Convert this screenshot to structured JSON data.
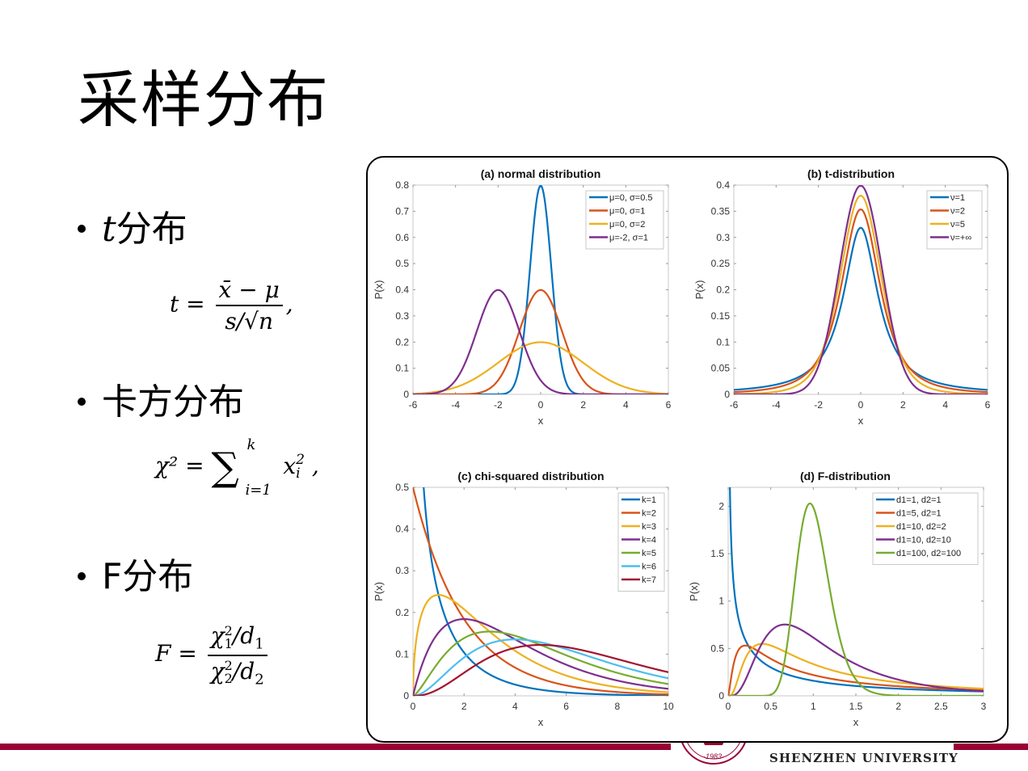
{
  "slide": {
    "title": "采样分布",
    "bullets": [
      {
        "prefix_italic": "t",
        "label": "分布"
      },
      {
        "prefix_italic": "",
        "label": "卡方分布"
      },
      {
        "prefix_italic": "",
        "label": "F分布"
      }
    ],
    "formulas": {
      "t": {
        "lhs": "t =",
        "num": "x̄ − μ",
        "den": "s/√n",
        "tail": ","
      },
      "chi": {
        "lhs": "χ² =",
        "sum": "∑",
        "upper": "k",
        "lower": "i=1",
        "term": "x",
        "term_sub": "i",
        "term_sup": "2",
        "tail": ","
      },
      "f": {
        "lhs": "F =",
        "num_main": "χ",
        "num_sub": "1",
        "num_sup": "2",
        "num_rest": "/d",
        "num_rest_sub": "1",
        "den_main": "χ",
        "den_sub": "2",
        "den_sup": "2",
        "den_rest": "/d",
        "den_rest_sub": "2"
      }
    },
    "footer": {
      "university": "SHENZHEN UNIVERSITY",
      "seal_year": "·1983·",
      "bar_color": "#9b0033"
    }
  },
  "chart_data": [
    {
      "type": "line",
      "title": "(a) normal distribution",
      "xlabel": "x",
      "ylabel": "P(x)",
      "xlim": [
        -6,
        6
      ],
      "ylim": [
        0,
        0.8
      ],
      "xticks": [
        -6,
        -4,
        -2,
        0,
        2,
        4,
        6
      ],
      "yticks": [
        0,
        0.1,
        0.2,
        0.3,
        0.4,
        0.5,
        0.6,
        0.7,
        0.8
      ],
      "legend_position": "upper right",
      "dist": "normal",
      "series": [
        {
          "name": "μ=0, σ=0.5",
          "mu": 0,
          "sigma": 0.5,
          "color": "#0072bd"
        },
        {
          "name": "μ=0, σ=1",
          "mu": 0,
          "sigma": 1,
          "color": "#d95319"
        },
        {
          "name": "μ=0, σ=2",
          "mu": 0,
          "sigma": 2,
          "color": "#edb120"
        },
        {
          "name": "μ=-2, σ=1",
          "mu": -2,
          "sigma": 1,
          "color": "#7e2f8e"
        }
      ]
    },
    {
      "type": "line",
      "title": "(b) t-distribution",
      "xlabel": "x",
      "ylabel": "P(x)",
      "xlim": [
        -6,
        6
      ],
      "ylim": [
        0,
        0.4
      ],
      "xticks": [
        -6,
        -4,
        -2,
        0,
        2,
        4,
        6
      ],
      "yticks": [
        0,
        0.05,
        0.1,
        0.15,
        0.2,
        0.25,
        0.3,
        0.35,
        0.4
      ],
      "legend_position": "upper right",
      "dist": "t",
      "series": [
        {
          "name": "ν=1",
          "nu": 1,
          "color": "#0072bd"
        },
        {
          "name": "ν=2",
          "nu": 2,
          "color": "#d95319"
        },
        {
          "name": "ν=5",
          "nu": 5,
          "color": "#edb120"
        },
        {
          "name": "ν=+∞",
          "nu": "inf",
          "color": "#7e2f8e"
        }
      ]
    },
    {
      "type": "line",
      "title": "(c) chi-squared distribution",
      "xlabel": "x",
      "ylabel": "P(x)",
      "xlim": [
        0,
        10
      ],
      "ylim": [
        0,
        0.5
      ],
      "xticks": [
        0,
        2,
        4,
        6,
        8,
        10
      ],
      "yticks": [
        0,
        0.1,
        0.2,
        0.3,
        0.4,
        0.5
      ],
      "legend_position": "upper right",
      "dist": "chi2",
      "series": [
        {
          "name": "k=1",
          "k": 1,
          "color": "#0072bd"
        },
        {
          "name": "k=2",
          "k": 2,
          "color": "#d95319"
        },
        {
          "name": "k=3",
          "k": 3,
          "color": "#edb120"
        },
        {
          "name": "k=4",
          "k": 4,
          "color": "#7e2f8e"
        },
        {
          "name": "k=5",
          "k": 5,
          "color": "#77ac30"
        },
        {
          "name": "k=6",
          "k": 6,
          "color": "#4dbeee"
        },
        {
          "name": "k=7",
          "k": 7,
          "color": "#a2142f"
        }
      ]
    },
    {
      "type": "line",
      "title": "(d) F-distribution",
      "xlabel": "x",
      "ylabel": "P(x)",
      "xlim": [
        0,
        3
      ],
      "ylim": [
        0,
        2.2
      ],
      "xticks": [
        0,
        0.5,
        1,
        1.5,
        2,
        2.5,
        3
      ],
      "yticks": [
        0,
        0.5,
        1,
        1.5,
        2
      ],
      "legend_position": "upper right",
      "dist": "F",
      "series": [
        {
          "name": "d1=1, d2=1",
          "d1": 1,
          "d2": 1,
          "color": "#0072bd"
        },
        {
          "name": "d1=5, d2=1",
          "d1": 5,
          "d2": 1,
          "color": "#d95319"
        },
        {
          "name": "d1=10, d2=2",
          "d1": 10,
          "d2": 2,
          "color": "#edb120"
        },
        {
          "name": "d1=10, d2=10",
          "d1": 10,
          "d2": 10,
          "color": "#7e2f8e"
        },
        {
          "name": "d1=100, d2=100",
          "d1": 100,
          "d2": 100,
          "color": "#77ac30"
        }
      ]
    }
  ]
}
